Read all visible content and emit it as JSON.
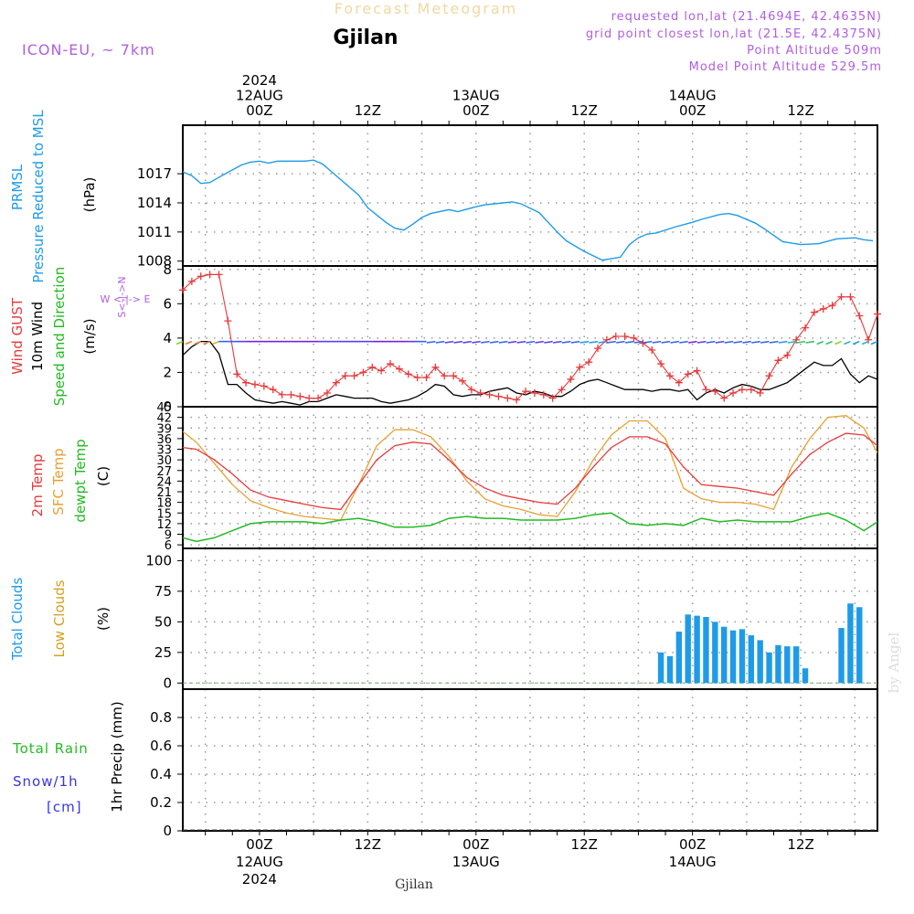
{
  "header": {
    "title_top": "Forecast Meteogram",
    "station": "Gjilan",
    "model": "ICON-EU, ~ 7km",
    "requested": "requested lon,lat (21.4694E, 42.4635N)",
    "grid_point": "grid point closest lon,lat (21.5E, 42.4375N)",
    "point_alt": "Point Altitude 509m",
    "model_alt": "Model Point Altitude 529.5m",
    "watermark": "by Angel",
    "footer_station": "Gjilan"
  },
  "time_axis": {
    "top_labels": [
      {
        "h": 24,
        "lines": [
          "2024",
          "12AUG",
          "00Z"
        ]
      },
      {
        "h": 36,
        "lines": [
          "12Z"
        ]
      },
      {
        "h": 48,
        "lines": [
          "13AUG",
          "00Z"
        ]
      },
      {
        "h": 60,
        "lines": [
          "12Z"
        ]
      },
      {
        "h": 72,
        "lines": [
          "14AUG",
          "00Z"
        ]
      },
      {
        "h": 84,
        "lines": [
          "12Z"
        ]
      }
    ],
    "bottom_labels": [
      {
        "h": 24,
        "lines": [
          "00Z",
          "12AUG",
          "2024"
        ]
      },
      {
        "h": 36,
        "lines": [
          "12Z"
        ]
      },
      {
        "h": 48,
        "lines": [
          "00Z",
          "13AUG"
        ]
      },
      {
        "h": 60,
        "lines": [
          "12Z"
        ]
      },
      {
        "h": 72,
        "lines": [
          "00Z",
          "14AUG"
        ]
      },
      {
        "h": 84,
        "lines": [
          "12Z"
        ]
      }
    ]
  },
  "labels": {
    "prmsl": "PRMSL",
    "prmsl_desc": "Pressure Reduced to MSL",
    "hpa": "(hPa)",
    "gust": "Wind GUST",
    "wind10": "10m Wind",
    "speeddir": "Speed and Direction",
    "ms": "(m/s)",
    "compass_n": "N",
    "compass_s": "S",
    "compass_we": "W <-|-> E",
    "compass_ns": "S<-|->N",
    "t2m": "2m Temp",
    "sfc": "SFC Temp",
    "dewpt": "dewpt Temp",
    "c": "(C)",
    "total_clouds": "Total Clouds",
    "low_clouds": "Low Clouds",
    "pct": "(%)",
    "total_rain": "Total Rain",
    "snow": "Snow/1h",
    "cm": "[cm]",
    "precip": "1hr Precip (mm)"
  },
  "colors": {
    "pressure": "#1e9be8",
    "gust": "#e8393b",
    "wind": "#000000",
    "t2m": "#e8393b",
    "sfc": "#e8a030",
    "dewpt": "#22bb22",
    "clouds": "#1e9be8",
    "low_clouds": "#d4a020",
    "magenta": "#b05ee0",
    "rain_green": "#22bb22",
    "snow_blue": "#3535e8"
  },
  "chart_data": [
    {
      "type": "line",
      "title": "PRMSL Pressure Reduced to MSL",
      "ylabel": "(hPa)",
      "ylim": [
        1007.5,
        1022
      ],
      "yticks": [
        1008,
        1011,
        1014,
        1017
      ],
      "xlim": [
        15.5,
        92.5
      ],
      "x": [
        15.5,
        16.5,
        17.5,
        18.5,
        20,
        21,
        22,
        23,
        24,
        25,
        26,
        27,
        29,
        30,
        31,
        33,
        35,
        36,
        38,
        39,
        40,
        41,
        42,
        43,
        45,
        46,
        48,
        49,
        50,
        52,
        53,
        55,
        56,
        57,
        58,
        60,
        62,
        64,
        65,
        66,
        67,
        68,
        70,
        72,
        73,
        75,
        76,
        77,
        79,
        80,
        82,
        84,
        86,
        88,
        90,
        91,
        92
      ],
      "values": [
        1017.2,
        1016.8,
        1016.0,
        1016.1,
        1016.9,
        1017.4,
        1017.9,
        1018.2,
        1018.3,
        1018.1,
        1018.3,
        1018.3,
        1018.3,
        1018.4,
        1018.0,
        1016.4,
        1014.8,
        1013.5,
        1012.0,
        1011.4,
        1011.2,
        1011.8,
        1012.5,
        1012.9,
        1013.3,
        1013.1,
        1013.6,
        1013.8,
        1013.9,
        1014.1,
        1013.9,
        1013.0,
        1012.0,
        1011.0,
        1010.1,
        1009.0,
        1008.1,
        1008.4,
        1009.7,
        1010.4,
        1010.8,
        1010.9,
        1011.5,
        1012.0,
        1012.3,
        1012.8,
        1012.9,
        1012.7,
        1011.9,
        1011.3,
        1010.0,
        1009.7,
        1009.8,
        1010.3,
        1010.4,
        1010.2,
        1010.1
      ]
    },
    {
      "type": "line",
      "title": "Wind GUST / 10m Wind",
      "ylabel": "(m/s)",
      "ylim": [
        0,
        8.2
      ],
      "yticks": [
        0,
        2,
        4,
        6,
        8
      ],
      "xlim": [
        15.5,
        92.5
      ],
      "x": [
        15.5,
        16.5,
        17.5,
        18.5,
        19.5,
        20.5,
        21.5,
        22.5,
        23.5,
        24.5,
        25.5,
        26.5,
        27.5,
        28.5,
        29.5,
        30.5,
        31.5,
        32.5,
        33.5,
        34.5,
        35.5,
        36.5,
        37.5,
        38.5,
        39.5,
        40.5,
        41.5,
        42.5,
        43.5,
        44.5,
        45.5,
        46.5,
        47.5,
        48.5,
        49.5,
        50.5,
        51.5,
        52.5,
        53.5,
        54.5,
        55.5,
        56.5,
        57.5,
        58.5,
        59.5,
        60.5,
        61.5,
        62.5,
        63.5,
        64.5,
        65.5,
        66.5,
        67.5,
        68.5,
        69.5,
        70.5,
        71.5,
        72.5,
        73.5,
        74.5,
        75.5,
        76.5,
        77.5,
        78.5,
        79.5,
        80.5,
        81.5,
        82.5,
        83.5,
        84.5,
        85.5,
        86.5,
        87.5,
        88.5,
        89.5,
        90.5,
        91.5,
        92.5
      ],
      "series": [
        {
          "name": "Wind GUST",
          "values": [
            6.8,
            7.3,
            7.6,
            7.7,
            7.7,
            5.0,
            1.9,
            1.4,
            1.3,
            1.2,
            1.0,
            0.7,
            0.7,
            0.6,
            0.5,
            0.5,
            0.8,
            1.4,
            1.8,
            1.8,
            2.0,
            2.3,
            2.1,
            2.5,
            2.2,
            1.9,
            1.7,
            1.7,
            2.3,
            1.8,
            1.8,
            1.5,
            1.0,
            0.8,
            0.7,
            0.6,
            0.5,
            0.4,
            0.9,
            0.8,
            0.7,
            0.5,
            1.0,
            1.6,
            2.3,
            2.6,
            3.4,
            3.9,
            4.1,
            4.1,
            4.0,
            3.7,
            3.3,
            2.5,
            1.8,
            1.4,
            1.9,
            2.1,
            1.0,
            0.9,
            0.5,
            0.8,
            1.0,
            1.0,
            0.8,
            1.8,
            2.7,
            3.0,
            3.9,
            4.6,
            5.5,
            5.7,
            5.9,
            6.4,
            6.4,
            5.3,
            3.9,
            5.4
          ]
        },
        {
          "name": "10m Wind",
          "values": [
            3.0,
            3.5,
            3.8,
            3.8,
            3.1,
            1.3,
            1.3,
            0.8,
            0.4,
            0.3,
            0.2,
            0.3,
            0.2,
            0.1,
            0.3,
            0.3,
            0.5,
            0.7,
            0.6,
            0.5,
            0.5,
            0.5,
            0.3,
            0.2,
            0.3,
            0.4,
            0.6,
            0.9,
            1.3,
            1.2,
            0.7,
            0.6,
            0.7,
            0.7,
            0.9,
            1.0,
            1.1,
            0.8,
            0.7,
            0.9,
            0.8,
            0.6,
            0.6,
            0.9,
            1.3,
            1.5,
            1.6,
            1.4,
            1.2,
            1.0,
            1.0,
            1.0,
            0.9,
            1.0,
            1.0,
            0.9,
            1.0,
            0.4,
            0.8,
            1.0,
            0.8,
            1.1,
            1.3,
            1.2,
            1.0,
            1.0,
            1.2,
            1.4,
            1.8,
            2.2,
            2.6,
            2.4,
            2.4,
            2.8,
            1.9,
            1.4,
            1.8,
            1.6
          ]
        }
      ]
    },
    {
      "type": "line",
      "title": "2m Temp / SFC Temp / dewpt Temp",
      "ylabel": "(C)",
      "ylim": [
        5,
        45
      ],
      "yticks": [
        6,
        9,
        12,
        15,
        18,
        21,
        24,
        27,
        30,
        33,
        36,
        39,
        42,
        45
      ],
      "xlim": [
        15.5,
        92.5
      ],
      "x": [
        15.5,
        17,
        19,
        21,
        23,
        25,
        27,
        29,
        31,
        33,
        35,
        37,
        39,
        41,
        43,
        45,
        47,
        49,
        51,
        53,
        55,
        57,
        59,
        61,
        63,
        65,
        67,
        69,
        71,
        73,
        75,
        77,
        79,
        81,
        83,
        85,
        87,
        89,
        91,
        92.5
      ],
      "series": [
        {
          "name": "2m Temp",
          "values": [
            33.5,
            33.0,
            30.0,
            26.0,
            21.5,
            19.5,
            18.5,
            17.5,
            16.5,
            16.0,
            23.0,
            30.0,
            34.0,
            35.0,
            34.5,
            30.0,
            25.0,
            22.0,
            20.0,
            19.0,
            18.0,
            17.5,
            22.0,
            28.0,
            33.5,
            36.5,
            36.5,
            34.5,
            28.0,
            23.0,
            22.5,
            22.0,
            21.0,
            20.0,
            26.0,
            31.5,
            35.0,
            37.5,
            37.0,
            34.0
          ]
        },
        {
          "name": "SFC Temp",
          "values": [
            38.0,
            35.0,
            29.0,
            23.0,
            18.5,
            16.5,
            15.0,
            14.0,
            13.5,
            13.0,
            23.0,
            34.0,
            38.5,
            38.5,
            36.5,
            31.0,
            24.0,
            19.0,
            17.0,
            16.0,
            14.5,
            14.0,
            21.0,
            30.0,
            37.0,
            41.0,
            41.0,
            36.0,
            22.0,
            19.0,
            18.0,
            18.0,
            17.5,
            16.0,
            28.0,
            36.0,
            42.0,
            42.5,
            39.0,
            32.0
          ]
        },
        {
          "name": "dewpt Temp",
          "values": [
            8.0,
            7.0,
            8.0,
            10.0,
            12.0,
            12.5,
            12.5,
            12.5,
            12.0,
            13.0,
            13.5,
            12.5,
            11.0,
            11.0,
            11.5,
            13.5,
            14.0,
            13.5,
            13.5,
            13.0,
            13.0,
            13.0,
            13.5,
            14.5,
            15.0,
            12.0,
            11.5,
            12.0,
            11.5,
            13.5,
            12.5,
            13.0,
            12.5,
            12.5,
            12.5,
            14.0,
            15.0,
            13.0,
            10.0,
            12.5
          ]
        }
      ]
    },
    {
      "type": "bar",
      "title": "Total Clouds / Low Clouds",
      "ylabel": "(%)",
      "ylim": [
        -5,
        110
      ],
      "yticks": [
        0,
        25,
        50,
        75,
        100
      ],
      "xlim": [
        15.5,
        92.5
      ],
      "x": [
        68.5,
        69.5,
        70.5,
        71.5,
        72.5,
        73.5,
        74.5,
        75.5,
        76.5,
        77.5,
        78.5,
        79.5,
        80.5,
        81.5,
        82.5,
        83.5,
        84.5,
        88.5,
        89.5,
        90.5
      ],
      "values": [
        25,
        22,
        42,
        56,
        55,
        54,
        50,
        46,
        43,
        44,
        39,
        35,
        25,
        31,
        30,
        30,
        12,
        45,
        65,
        62
      ]
    },
    {
      "type": "bar",
      "title": "Total Rain / Snow/1h",
      "ylabel": "1hr Precip (mm)",
      "ylim": [
        0,
        1.0
      ],
      "yticks": [
        0,
        0.2,
        0.4,
        0.6,
        0.8
      ],
      "xlim": [
        15.5,
        92.5
      ],
      "x": [],
      "values": []
    }
  ]
}
